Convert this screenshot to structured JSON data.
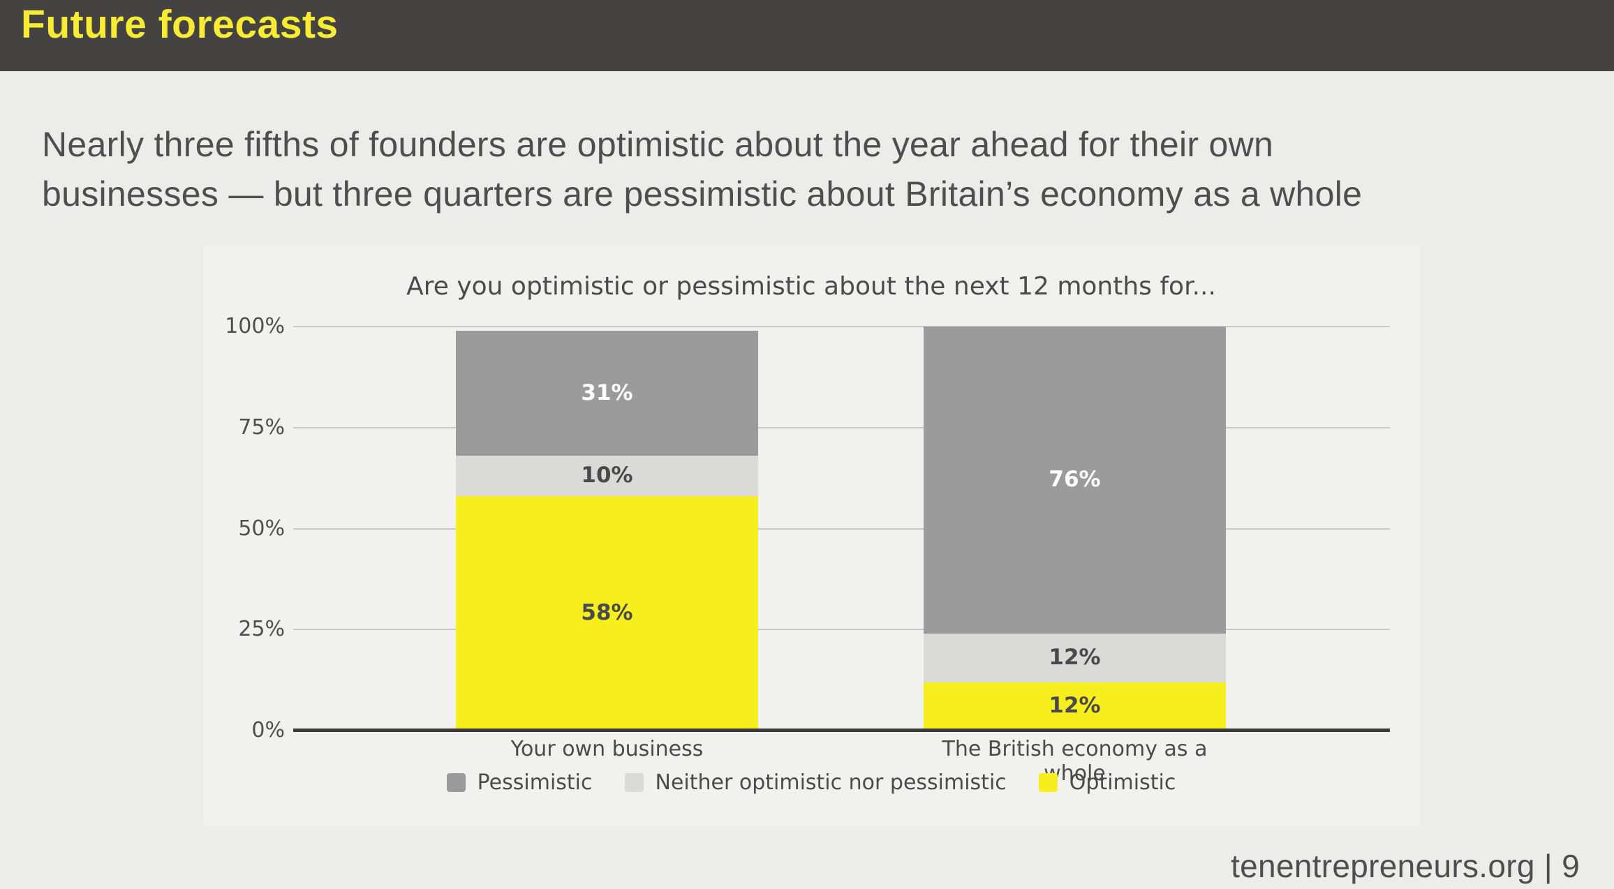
{
  "header": {
    "title": "Future forecasts"
  },
  "subtitle": {
    "line1": "Nearly three fifths of founders are optimistic about the year ahead for their own",
    "line2": "businesses — but three quarters are pessimistic about Britain’s economy as a whole"
  },
  "footer": {
    "text": "tenentrepreneurs.org | 9"
  },
  "colors": {
    "header_bg": "#454341",
    "header_title": "#f7ec33",
    "page_bg": "#ececeb",
    "panel_bg": "#f1f1f0",
    "gridline": "#c9c9c9",
    "axis": "#3a3a3a",
    "optimistic": "#f7ee1e",
    "neither": "#dadad9",
    "pessimistic": "#9b9b9b",
    "dark_text": "#4b4b4b",
    "white_label": "#ffffff"
  },
  "chart_data": {
    "type": "bar",
    "stacked": true,
    "title": "Are you optimistic or pessimistic about the next 12 months for...",
    "categories": [
      "Your own business",
      "The British economy as a whole"
    ],
    "series": [
      {
        "name": "Optimistic",
        "color": "#f7ee1e",
        "label_color": "#4a4a4a",
        "values": [
          58,
          12
        ]
      },
      {
        "name": "Neither optimistic nor pessimistic",
        "color": "#dadad9",
        "label_color": "#4a4a4a",
        "values": [
          10,
          12
        ]
      },
      {
        "name": "Pessimistic",
        "color": "#9b9b9b",
        "label_color": "#ffffff",
        "values": [
          31,
          76
        ]
      }
    ],
    "legend_order": [
      2,
      1,
      0
    ],
    "legend_position": "bottom",
    "y_ticks": [
      "0%",
      "25%",
      "50%",
      "75%",
      "100%"
    ],
    "ylim": [
      0,
      100
    ],
    "value_suffix": "%",
    "grid": true
  }
}
